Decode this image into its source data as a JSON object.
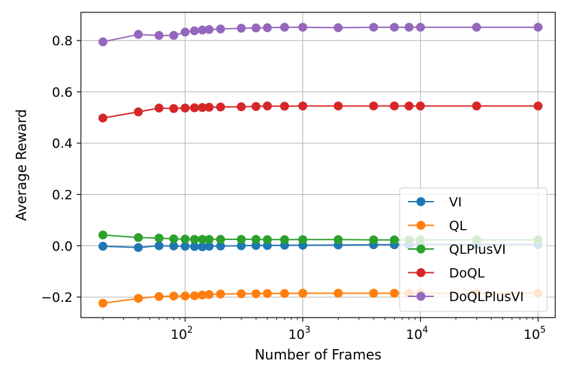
{
  "chart_data": {
    "type": "line",
    "title": "",
    "xlabel": "Number of Frames",
    "ylabel": "Average Reward",
    "xscale": "log",
    "xlim": [
      13,
      140000
    ],
    "ylim": [
      -0.28,
      0.91
    ],
    "grid": true,
    "legend_position": "lower-right",
    "x_ticks": [
      {
        "value": 100,
        "base": "10",
        "exp": "2"
      },
      {
        "value": 1000,
        "base": "10",
        "exp": "3"
      },
      {
        "value": 10000,
        "base": "10",
        "exp": "4"
      },
      {
        "value": 100000,
        "base": "10",
        "exp": "5"
      }
    ],
    "y_ticks": [
      {
        "value": -0.2,
        "label": "−0.2"
      },
      {
        "value": 0.0,
        "label": "0.0"
      },
      {
        "value": 0.2,
        "label": "0.2"
      },
      {
        "value": 0.4,
        "label": "0.4"
      },
      {
        "value": 0.6,
        "label": "0.6"
      },
      {
        "value": 0.8,
        "label": "0.8"
      }
    ],
    "series": [
      {
        "name": "VI",
        "color": "#1f77b4",
        "x": [
          20,
          40,
          60,
          80,
          100,
          120,
          140,
          160,
          200,
          300,
          400,
          500,
          700,
          1000,
          2000,
          4000,
          6000,
          8000,
          10000,
          30000,
          100000
        ],
        "y": [
          -0.002,
          -0.007,
          0.0,
          -0.001,
          -0.002,
          -0.003,
          -0.004,
          -0.002,
          -0.001,
          0.0,
          0.001,
          0.001,
          0.002,
          0.002,
          0.003,
          0.004,
          0.004,
          0.005,
          0.005,
          0.005,
          0.005
        ]
      },
      {
        "name": "QL",
        "color": "#ff7f0e",
        "x": [
          20,
          40,
          60,
          80,
          100,
          120,
          140,
          160,
          200,
          300,
          400,
          500,
          700,
          1000,
          2000,
          4000,
          6000,
          8000,
          10000,
          30000,
          100000
        ],
        "y": [
          -0.224,
          -0.205,
          -0.198,
          -0.196,
          -0.196,
          -0.195,
          -0.192,
          -0.19,
          -0.188,
          -0.187,
          -0.187,
          -0.186,
          -0.186,
          -0.185,
          -0.185,
          -0.185,
          -0.185,
          -0.185,
          -0.185,
          -0.185,
          -0.185
        ]
      },
      {
        "name": "QLPlusVI",
        "color": "#2ca02c",
        "x": [
          20,
          40,
          60,
          80,
          100,
          120,
          140,
          160,
          200,
          300,
          400,
          500,
          700,
          1000,
          2000,
          4000,
          6000,
          8000,
          10000,
          30000,
          100000
        ],
        "y": [
          0.042,
          0.032,
          0.03,
          0.027,
          0.026,
          0.025,
          0.025,
          0.025,
          0.025,
          0.025,
          0.025,
          0.024,
          0.024,
          0.024,
          0.024,
          0.023,
          0.023,
          0.023,
          0.023,
          0.023,
          0.023
        ]
      },
      {
        "name": "DoQL",
        "color": "#d62728",
        "x": [
          20,
          40,
          60,
          80,
          100,
          120,
          140,
          160,
          200,
          300,
          400,
          500,
          700,
          1000,
          2000,
          4000,
          6000,
          8000,
          10000,
          30000,
          100000
        ],
        "y": [
          0.498,
          0.522,
          0.537,
          0.535,
          0.537,
          0.538,
          0.539,
          0.54,
          0.541,
          0.542,
          0.543,
          0.545,
          0.544,
          0.545,
          0.545,
          0.545,
          0.545,
          0.545,
          0.545,
          0.545,
          0.545
        ]
      },
      {
        "name": "DoQLPlusVI",
        "color": "#9467bd",
        "x": [
          20,
          40,
          60,
          80,
          100,
          120,
          140,
          160,
          200,
          300,
          400,
          500,
          700,
          1000,
          2000,
          4000,
          6000,
          8000,
          10000,
          30000,
          100000
        ],
        "y": [
          0.795,
          0.824,
          0.82,
          0.82,
          0.833,
          0.838,
          0.841,
          0.843,
          0.845,
          0.848,
          0.849,
          0.85,
          0.852,
          0.852,
          0.85,
          0.852,
          0.852,
          0.852,
          0.852,
          0.852,
          0.852
        ]
      }
    ]
  }
}
